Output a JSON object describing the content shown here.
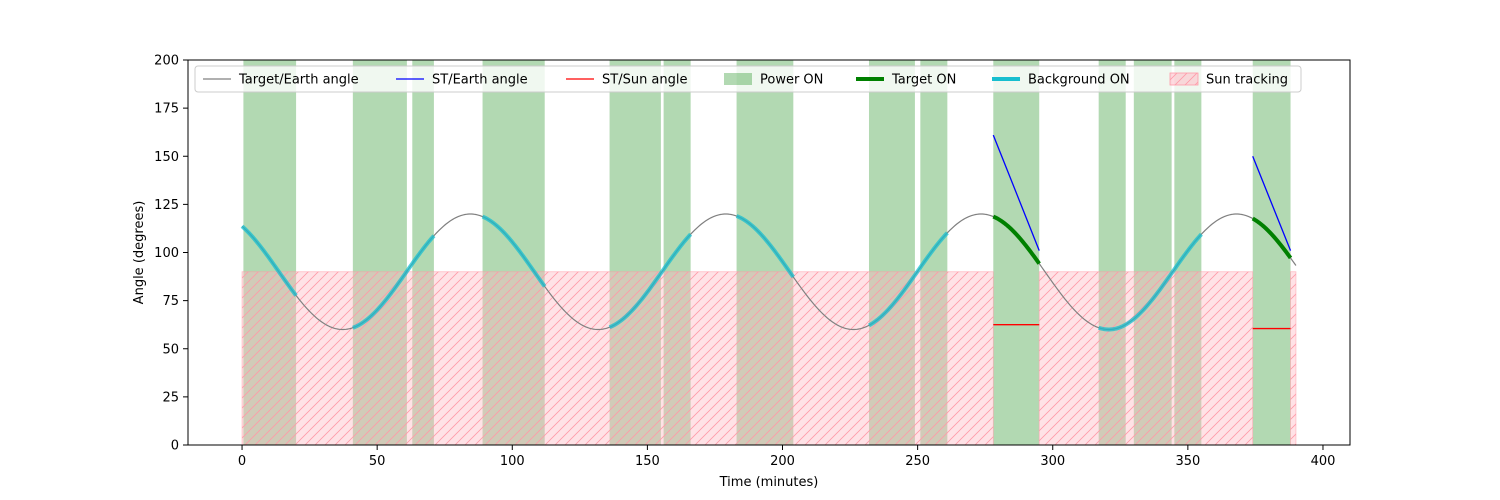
{
  "chart_data": {
    "type": "line",
    "title": "",
    "xlabel": "Time (minutes)",
    "ylabel": "Angle (degrees)",
    "xlim": [
      -20,
      410
    ],
    "ylim": [
      0,
      200
    ],
    "xticks": [
      0,
      50,
      100,
      150,
      200,
      250,
      300,
      350,
      400
    ],
    "yticks": [
      0,
      25,
      50,
      75,
      100,
      125,
      150,
      175,
      200
    ],
    "grid": false,
    "legend_position": "top",
    "colors": {
      "target_earth": "#808080",
      "st_earth": "#0000ff",
      "st_sun": "#ff0000",
      "power_on": "#008000",
      "target_on": "#008000",
      "background_on": "#17becf",
      "sun_tracking": "#ffb6c1"
    },
    "legend": [
      {
        "key": "target_earth",
        "label": "Target/Earth angle",
        "kind": "line"
      },
      {
        "key": "st_earth",
        "label": "ST/Earth angle",
        "kind": "line"
      },
      {
        "key": "st_sun",
        "label": "ST/Sun angle",
        "kind": "line"
      },
      {
        "key": "power_on",
        "label": "Power ON",
        "kind": "patch"
      },
      {
        "key": "target_on",
        "label": "Target ON",
        "kind": "thick"
      },
      {
        "key": "background_on",
        "label": "Background ON",
        "kind": "thick"
      },
      {
        "key": "sun_tracking",
        "label": "Sun tracking",
        "kind": "hatch"
      }
    ],
    "target_earth_curve": {
      "x_start": 0,
      "x_end": 390,
      "center": 90,
      "amplitude": 30,
      "period_minutes": 94.5,
      "peak_at_minutes": 84.5
    },
    "power_on_intervals": [
      [
        0.5,
        20
      ],
      [
        41,
        61
      ],
      [
        63,
        71
      ],
      [
        89,
        112
      ],
      [
        136,
        155
      ],
      [
        156,
        166
      ],
      [
        183,
        204
      ],
      [
        232,
        249
      ],
      [
        251,
        261
      ],
      [
        278,
        295
      ],
      [
        317,
        327
      ],
      [
        330,
        344
      ],
      [
        345,
        355
      ],
      [
        374,
        388
      ]
    ],
    "sun_tracking_intervals": [
      [
        0,
        278
      ],
      [
        295,
        374
      ],
      [
        388,
        390
      ]
    ],
    "sun_tracking_level": 90,
    "target_on_intervals": [
      [
        278,
        295
      ],
      [
        374,
        388
      ]
    ],
    "background_on_intervals": [
      [
        0,
        20
      ],
      [
        41,
        71
      ],
      [
        89,
        112
      ],
      [
        136,
        166
      ],
      [
        183,
        204
      ],
      [
        232,
        261
      ],
      [
        317,
        355
      ]
    ],
    "st_earth_segments": [
      {
        "x": [
          278,
          295
        ],
        "y": [
          161,
          101
        ]
      },
      {
        "x": [
          374,
          388
        ],
        "y": [
          150,
          101
        ]
      }
    ],
    "st_sun_segments": [
      {
        "x": [
          278,
          295
        ],
        "y": [
          62.5,
          62.5
        ]
      },
      {
        "x": [
          374,
          388
        ],
        "y": [
          60.5,
          60.5
        ]
      }
    ]
  }
}
